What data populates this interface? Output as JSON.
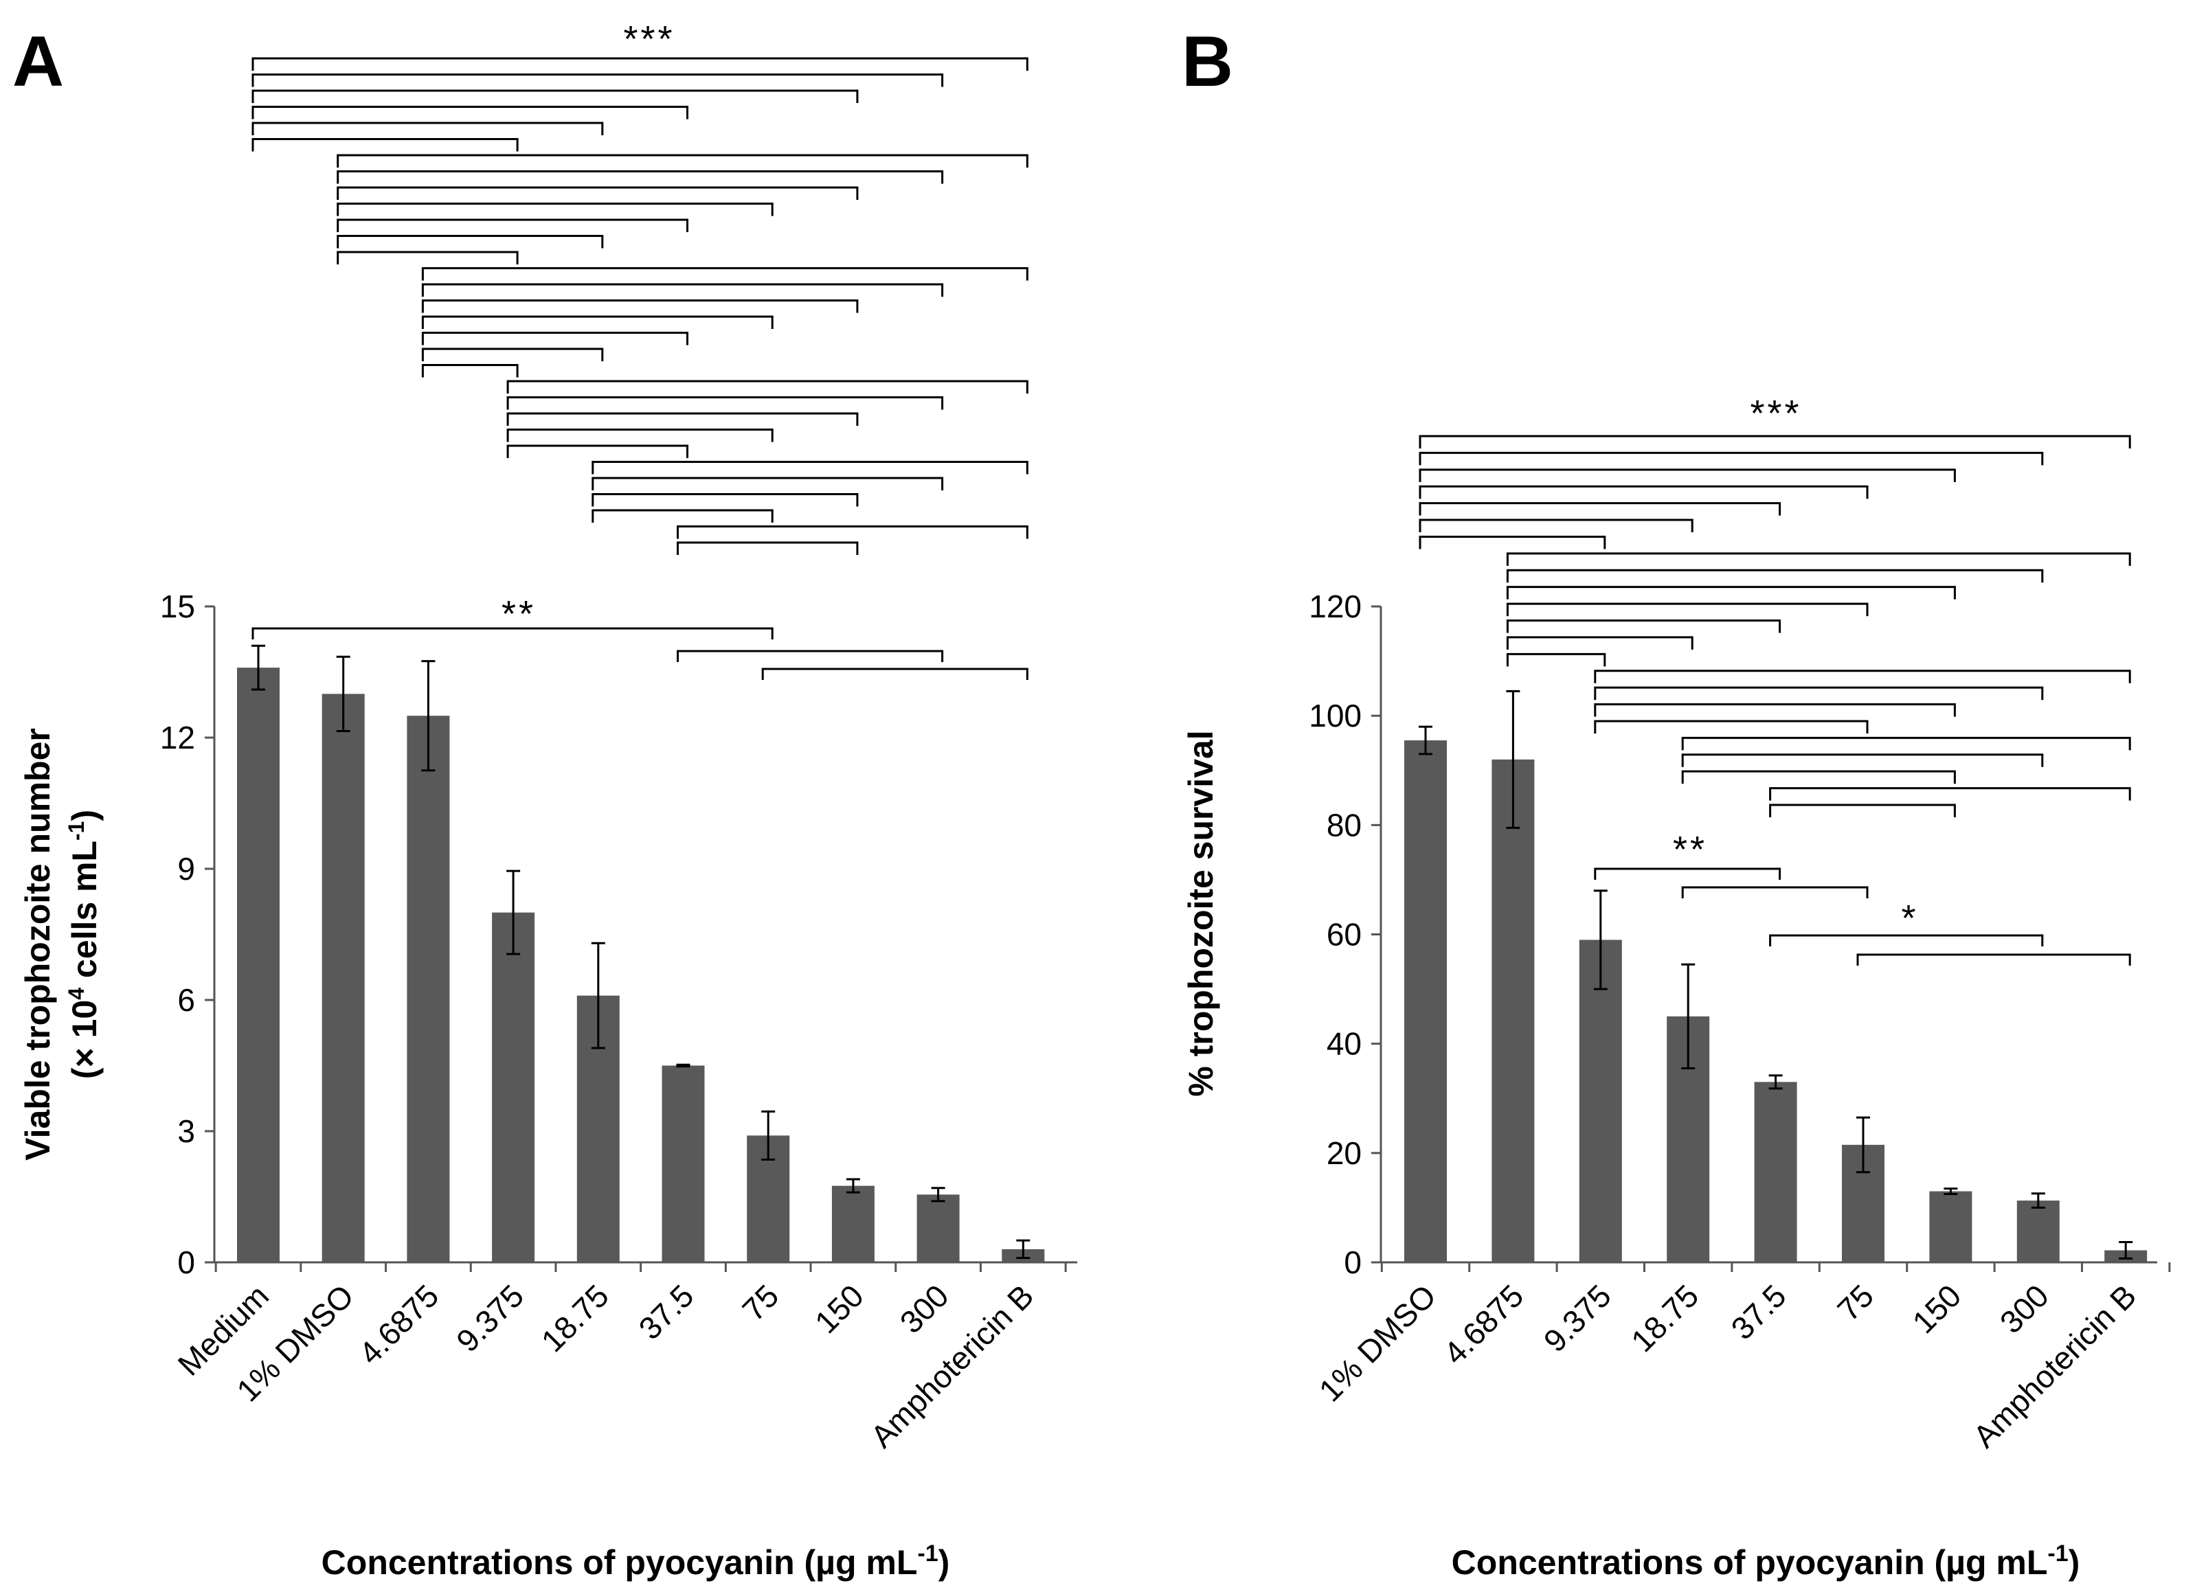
{
  "chart_data": [
    {
      "panel": "A",
      "type": "bar",
      "xlabel_main": "Concentrations of pyocyanin (µg mL",
      "xlabel_sup": "-1",
      "xlabel_tail": ")",
      "ylabel_line1": "Viable trophozoite number",
      "ylabel_line2_pre": "(× 10",
      "ylabel_line2_sup": "4",
      "ylabel_line2_mid": " cells mL",
      "ylabel_line2_sup2": "-1",
      "ylabel_line2_tail": ")",
      "ylim": [
        0,
        15
      ],
      "yticks": [
        "0",
        "3",
        "6",
        "9",
        "12",
        "15"
      ],
      "ytick_values": [
        0,
        3,
        6,
        9,
        12,
        15
      ],
      "categories": [
        "Medium",
        "1% DMSO",
        "4.6875",
        "9.375",
        "18.75",
        "37.5",
        "75",
        "150",
        "300",
        "Amphotericin B"
      ],
      "values": [
        13.6,
        13.0,
        12.5,
        8.0,
        6.1,
        4.5,
        2.9,
        1.75,
        1.55,
        0.3
      ],
      "errors": [
        0.5,
        0.85,
        1.25,
        0.95,
        1.2,
        0.02,
        0.55,
        0.15,
        0.15,
        0.2
      ],
      "significance": [
        {
          "label": "***",
          "comparisons": [
            [
              0,
              9
            ],
            [
              0,
              8
            ],
            [
              0,
              7
            ],
            [
              0,
              5
            ],
            [
              0,
              4
            ],
            [
              0,
              3
            ],
            [
              1,
              9
            ],
            [
              1,
              8
            ],
            [
              1,
              7
            ],
            [
              1,
              6
            ],
            [
              1,
              5
            ],
            [
              1,
              4
            ],
            [
              1,
              3
            ],
            [
              2,
              9
            ],
            [
              2,
              8
            ],
            [
              2,
              7
            ],
            [
              2,
              6
            ],
            [
              2,
              5
            ],
            [
              2,
              4
            ],
            [
              2,
              3
            ],
            [
              3,
              9
            ],
            [
              3,
              8
            ],
            [
              3,
              7
            ],
            [
              3,
              6
            ],
            [
              3,
              5
            ],
            [
              4,
              9
            ],
            [
              4,
              8
            ],
            [
              4,
              7
            ],
            [
              4,
              6
            ],
            [
              5,
              9
            ],
            [
              5,
              7
            ]
          ]
        },
        {
          "label": "**",
          "comparisons": [
            [
              0,
              6
            ],
            [
              5,
              8
            ],
            [
              6,
              9
            ]
          ]
        }
      ]
    },
    {
      "panel": "B",
      "type": "bar",
      "xlabel_main": "Concentrations of pyocyanin (µg mL",
      "xlabel_sup": "-1",
      "xlabel_tail": ")",
      "ylabel_line1": "% trophozoite survival",
      "ylim": [
        0,
        120
      ],
      "yticks": [
        "0",
        "20",
        "40",
        "60",
        "80",
        "100",
        "120"
      ],
      "ytick_values": [
        0,
        20,
        40,
        60,
        80,
        100,
        120
      ],
      "categories": [
        "1% DMSO",
        "4.6875",
        "9.375",
        "18.75",
        "37.5",
        "75",
        "150",
        "300",
        "Amphotericin B"
      ],
      "values": [
        95.5,
        92,
        59,
        45,
        33,
        21.5,
        13,
        11.3,
        2.2
      ],
      "errors": [
        2.5,
        12.5,
        9,
        9.5,
        1.2,
        5,
        0.5,
        1.3,
        1.5
      ],
      "significance": [
        {
          "label": "***",
          "comparisons": [
            [
              0,
              8
            ],
            [
              0,
              7
            ],
            [
              0,
              6
            ],
            [
              0,
              5
            ],
            [
              0,
              4
            ],
            [
              0,
              3
            ],
            [
              0,
              2
            ],
            [
              1,
              8
            ],
            [
              1,
              7
            ],
            [
              1,
              6
            ],
            [
              1,
              5
            ],
            [
              1,
              4
            ],
            [
              1,
              3
            ],
            [
              1,
              2
            ],
            [
              2,
              8
            ],
            [
              2,
              7
            ],
            [
              2,
              6
            ],
            [
              2,
              5
            ],
            [
              3,
              8
            ],
            [
              3,
              7
            ],
            [
              3,
              6
            ],
            [
              4,
              8
            ],
            [
              4,
              6
            ]
          ]
        },
        {
          "label": "**",
          "comparisons": [
            [
              2,
              4
            ],
            [
              3,
              5
            ]
          ]
        },
        {
          "label": "*",
          "comparisons": [
            [
              4,
              7
            ],
            [
              5,
              8
            ]
          ]
        }
      ]
    }
  ]
}
